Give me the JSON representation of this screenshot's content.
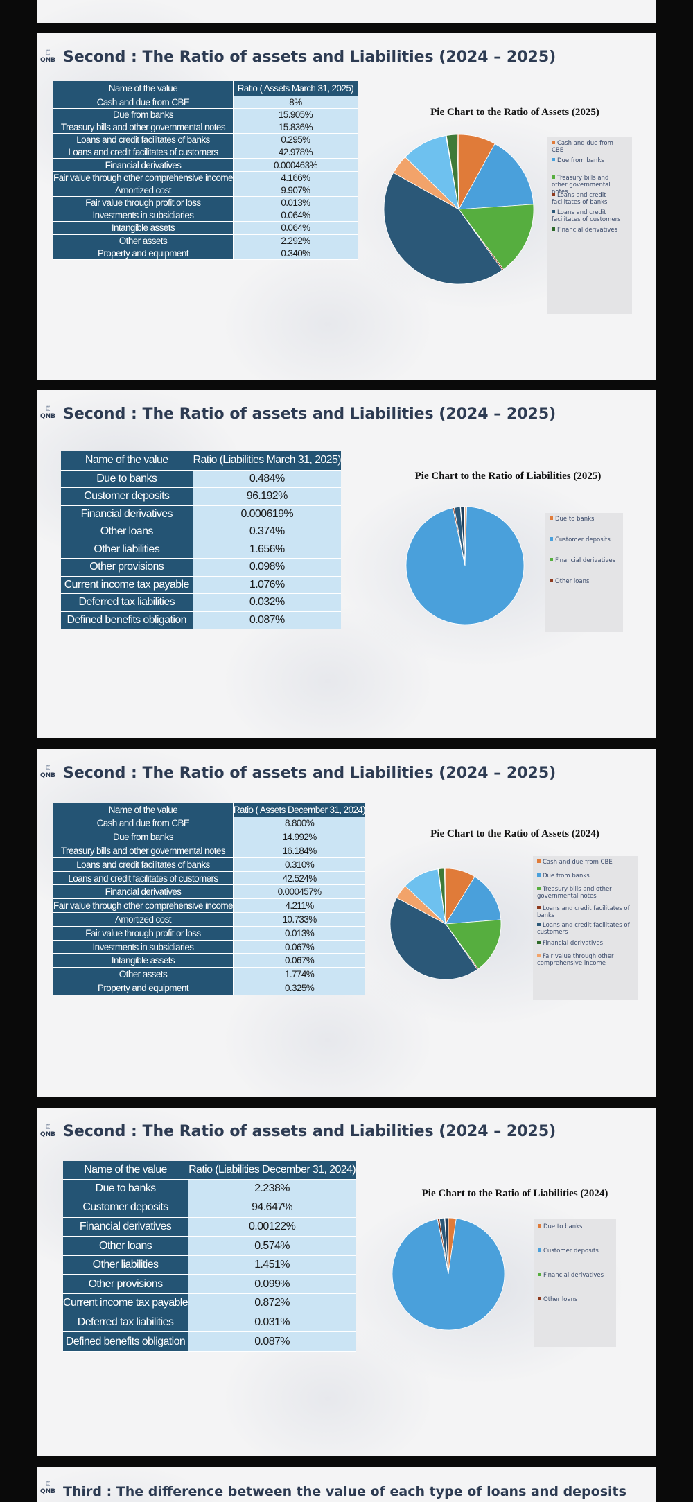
{
  "brand": "QNB",
  "colors": {
    "table_header": "#245474",
    "table_value": "#cbe4f4",
    "c0": "#e07b39",
    "c1": "#4aa0db",
    "c2": "#56ae3f",
    "c3": "#8e3a1e",
    "c4": "#2b5878",
    "c5": "#2e6a2a",
    "c6": "#f2a36a"
  },
  "slides": [
    {
      "title": "Second : The Ratio of assets and Liabilities (2024 – 2025)",
      "table": {
        "headers": [
          "Name of the value",
          "Ratio ( Assets March 31, 2025)"
        ],
        "rows": [
          [
            "Cash and due from CBE",
            "8%"
          ],
          [
            "Due from banks",
            "15.905%"
          ],
          [
            "Treasury bills and other governmental notes",
            "15.836%"
          ],
          [
            "Loans and credit facilitates of banks",
            "0.295%"
          ],
          [
            "Loans and credit facilitates of customers",
            "42.978%"
          ],
          [
            "Financial derivatives",
            "0.000463%"
          ],
          [
            "Fair value through other comprehensive income",
            "4.166%"
          ],
          [
            "Amortized cost",
            "9.907%"
          ],
          [
            "Fair value through profit or loss",
            "0.013%"
          ],
          [
            "Investments in subsidiaries",
            "0.064%"
          ],
          [
            "Intangible assets",
            "0.064%"
          ],
          [
            "Other assets",
            "2.292%"
          ],
          [
            "Property and equipment",
            "0.340%"
          ]
        ]
      },
      "chart_data": {
        "type": "pie",
        "title": "Pie Chart to the Ratio of Assets (2025)",
        "categories": [
          "Cash and due from CBE",
          "Due from banks",
          "Treasury bills and other governmental notes",
          "Loans and credit facilitates of banks",
          "Loans and credit facilitates of customers",
          "Financial derivatives",
          "Fair value through other comprehensive income",
          "Amortized cost",
          "Fair value through profit or loss",
          "Investments in subsidiaries",
          "Intangible assets",
          "Other assets",
          "Property and equipment"
        ],
        "values": [
          8,
          15.905,
          15.836,
          0.295,
          42.978,
          0.000463,
          4.166,
          9.907,
          0.013,
          0.064,
          0.064,
          2.292,
          0.34
        ],
        "slice_colors": [
          "#e07b39",
          "#4aa0db",
          "#56ae3f",
          "#8e3a1e",
          "#2b5878",
          "#2e6a2a",
          "#f2a36a",
          "#6ec1ef",
          "#9fd07e",
          "#c0703e",
          "#4f7fa6",
          "#3f7a38",
          "#f4b48a"
        ],
        "legend": [
          "Cash and due from CBE",
          "Due from banks",
          "Treasury bills and other governmental notes",
          "Loans and credit facilitates of banks",
          "Loans and credit facilitates of customers",
          "Financial derivatives"
        ],
        "legend_position": "right"
      }
    },
    {
      "title": "Second : The Ratio of assets and Liabilities (2024 – 2025)",
      "table": {
        "headers": [
          "Name of the value",
          "Ratio (Liabilities March 31, 2025)"
        ],
        "rows": [
          [
            "Due to banks",
            "0.484%"
          ],
          [
            "Customer deposits",
            "96.192%"
          ],
          [
            "Financial derivatives",
            "0.000619%"
          ],
          [
            "Other loans",
            "0.374%"
          ],
          [
            "Other liabilities",
            "1.656%"
          ],
          [
            "Other provisions",
            "0.098%"
          ],
          [
            "Current income tax payable",
            "1.076%"
          ],
          [
            "Deferred tax liabilities",
            "0.032%"
          ],
          [
            "Defined benefits obligation",
            "0.087%"
          ]
        ]
      },
      "chart_data": {
        "type": "pie",
        "title": "Pie Chart to the Ratio of Liabilities (2025)",
        "categories": [
          "Due to banks",
          "Customer deposits",
          "Financial derivatives",
          "Other loans",
          "Other liabilities",
          "Other provisions",
          "Current income tax payable",
          "Deferred tax liabilities",
          "Defined benefits obligation"
        ],
        "values": [
          0.484,
          96.192,
          0.000619,
          0.374,
          1.656,
          0.098,
          1.076,
          0.032,
          0.087
        ],
        "slice_colors": [
          "#e07b39",
          "#4aa0db",
          "#56ae3f",
          "#8e3a1e",
          "#2b5878",
          "#2e6a2a",
          "#1f3f5c",
          "#f2a36a",
          "#6ec1ef"
        ],
        "legend": [
          "Due to banks",
          "Customer deposits",
          "Financial derivatives",
          "Other loans"
        ],
        "legend_position": "right"
      }
    },
    {
      "title": "Second : The Ratio of assets and Liabilities (2024 – 2025)",
      "table": {
        "headers": [
          "Name of the value",
          "Ratio ( Assets December 31, 2024)"
        ],
        "rows": [
          [
            "Cash and due from CBE",
            "8.800%"
          ],
          [
            "Due from banks",
            "14.992%"
          ],
          [
            "Treasury bills and other governmental notes",
            "16.184%"
          ],
          [
            "Loans and credit facilitates of banks",
            "0.310%"
          ],
          [
            "Loans and credit facilitates of customers",
            "42.524%"
          ],
          [
            "Financial derivatives",
            "0.000457%"
          ],
          [
            "Fair value through other comprehensive income",
            "4.211%"
          ],
          [
            "Amortized cost",
            "10.733%"
          ],
          [
            "Fair value through profit or loss",
            "0.013%"
          ],
          [
            "Investments in subsidiaries",
            "0.067%"
          ],
          [
            "Intangible assets",
            "0.067%"
          ],
          [
            "Other assets",
            "1.774%"
          ],
          [
            "Property and equipment",
            "0.325%"
          ]
        ]
      },
      "chart_data": {
        "type": "pie",
        "title": "Pie Chart to the Ratio of Assets (2024)",
        "categories": [
          "Cash and due from CBE",
          "Due from banks",
          "Treasury bills and other governmental notes",
          "Loans and credit facilitates of banks",
          "Loans and credit facilitates of customers",
          "Financial derivatives",
          "Fair value through other comprehensive income",
          "Amortized cost",
          "Fair value through profit or loss",
          "Investments in subsidiaries",
          "Intangible assets",
          "Other assets",
          "Property and equipment"
        ],
        "values": [
          8.8,
          14.992,
          16.184,
          0.31,
          42.524,
          0.000457,
          4.211,
          10.733,
          0.013,
          0.067,
          0.067,
          1.774,
          0.325
        ],
        "slice_colors": [
          "#e07b39",
          "#4aa0db",
          "#56ae3f",
          "#8e3a1e",
          "#2b5878",
          "#2e6a2a",
          "#f2a36a",
          "#6ec1ef",
          "#9fd07e",
          "#c0703e",
          "#4f7fa6",
          "#3f7a38",
          "#f4b48a"
        ],
        "legend": [
          "Cash and due from CBE",
          "Due from banks",
          "Treasury bills and other governmental notes",
          "Loans and credit facilitates of banks",
          "Loans and credit facilitates of customers",
          "Financial derivatives",
          "Fair value through other comprehensive income"
        ],
        "legend_position": "right"
      }
    },
    {
      "title": "Second : The Ratio of assets and Liabilities (2024 – 2025)",
      "table": {
        "headers": [
          "Name of the value",
          "Ratio (Liabilities December 31, 2024)"
        ],
        "rows": [
          [
            "Due to banks",
            "2.238%"
          ],
          [
            "Customer deposits",
            "94.647%"
          ],
          [
            "Financial derivatives",
            "0.00122%"
          ],
          [
            "Other loans",
            "0.574%"
          ],
          [
            "Other liabilities",
            "1.451%"
          ],
          [
            "Other provisions",
            "0.099%"
          ],
          [
            "Current income tax payable",
            "0.872%"
          ],
          [
            "Deferred tax liabilities",
            "0.031%"
          ],
          [
            "Defined benefits obligation",
            "0.087%"
          ]
        ]
      },
      "chart_data": {
        "type": "pie",
        "title": "Pie Chart to the Ratio of Liabilities (2024)",
        "categories": [
          "Due to banks",
          "Customer deposits",
          "Financial derivatives",
          "Other loans",
          "Other liabilities",
          "Other provisions",
          "Current income tax payable",
          "Deferred tax liabilities",
          "Defined benefits obligation"
        ],
        "values": [
          2.238,
          94.647,
          0.00122,
          0.574,
          1.451,
          0.099,
          0.872,
          0.031,
          0.087
        ],
        "slice_colors": [
          "#e07b39",
          "#4aa0db",
          "#56ae3f",
          "#8e3a1e",
          "#2b5878",
          "#2e6a2a",
          "#1f3f5c",
          "#f2a36a",
          "#6ec1ef"
        ],
        "legend": [
          "Due to banks",
          "Customer deposits",
          "Financial derivatives",
          "Other loans"
        ],
        "legend_position": "right"
      }
    }
  ],
  "next_slide_title": "Third : The difference between the value of each type of loans and deposits"
}
